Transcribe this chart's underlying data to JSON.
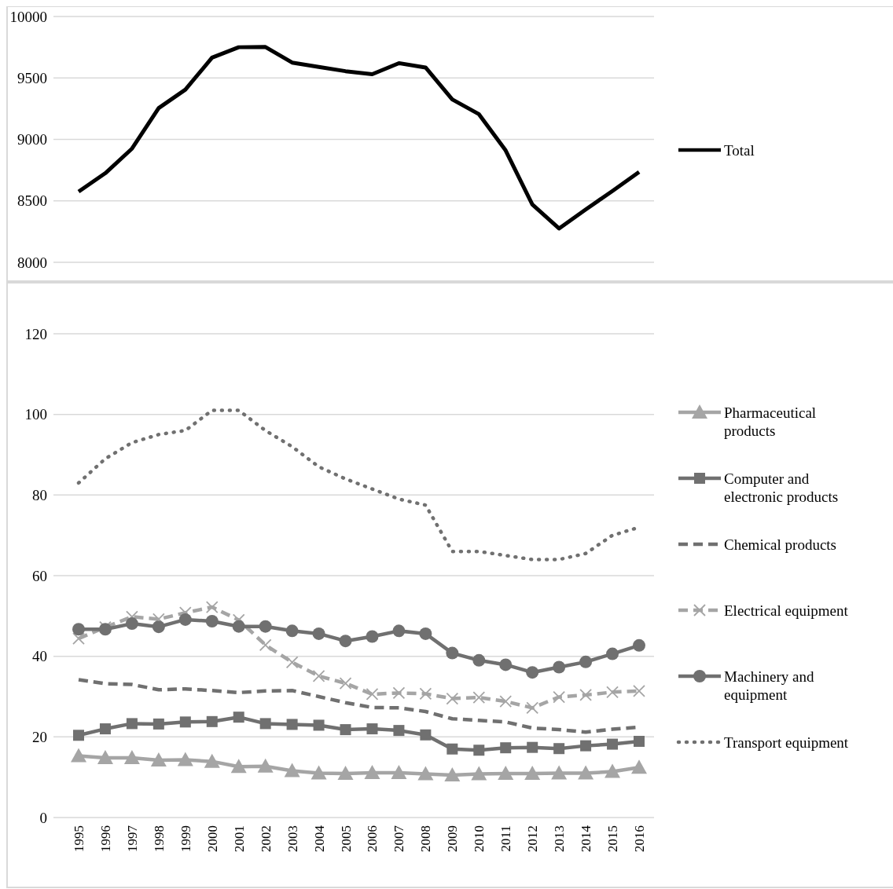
{
  "chart_data": [
    {
      "type": "line",
      "categories": [
        null,
        null,
        null,
        null,
        null,
        null,
        null,
        null,
        null,
        null,
        null,
        null,
        null,
        null,
        null,
        null,
        null,
        null,
        null,
        null,
        null,
        null
      ],
      "ylim": [
        8000,
        10000
      ],
      "yticks": [
        8000,
        8500,
        9000,
        9500,
        10000
      ],
      "grid": "y",
      "legend": "right",
      "tick_labels": "y",
      "marker": "none",
      "line_style": "solid",
      "series": [
        {
          "name": "Total",
          "color": "#000000",
          "values": [
            8575,
            8725,
            8925,
            9255,
            9405,
            9665,
            9750,
            9752,
            9625,
            9590,
            9555,
            9530,
            9620,
            9585,
            9325,
            9205,
            8910,
            8470,
            8275,
            8430,
            8580,
            8735
          ]
        }
      ]
    },
    {
      "type": "line",
      "categories": [
        "1995",
        "1996",
        "1997",
        "1998",
        "1999",
        "2000",
        "2001",
        "2002",
        "2003",
        "2004",
        "2005",
        "2006",
        "2007",
        "2008",
        "2009",
        "2010",
        "2011",
        "2012",
        "2013",
        "2014",
        "2015",
        "2016"
      ],
      "ylim": [
        0,
        120
      ],
      "yticks": [
        0,
        20,
        40,
        60,
        80,
        100,
        120
      ],
      "grid": "y",
      "legend": "right",
      "series": [
        {
          "name": "Pharmaceutical products",
          "color": "#a5a5a5",
          "marker": "triangle",
          "line_style": "solid",
          "values": [
            15.3,
            14.8,
            14.8,
            14.2,
            14.3,
            13.9,
            12.6,
            12.7,
            11.6,
            11,
            10.9,
            11.1,
            11.1,
            10.8,
            10.5,
            10.8,
            10.9,
            10.9,
            11,
            11,
            11.4,
            12.4
          ]
        },
        {
          "name": "Computer and electronic products",
          "color": "#707070",
          "marker": "square",
          "line_style": "solid",
          "values": [
            20.4,
            22,
            23.3,
            23.2,
            23.7,
            23.8,
            24.9,
            23.3,
            23.1,
            22.9,
            21.8,
            22,
            21.6,
            20.5,
            17,
            16.7,
            17.3,
            17.4,
            17.1,
            17.8,
            18.2,
            18.9
          ]
        },
        {
          "name": "Chemical products",
          "color": "#707070",
          "marker": "none",
          "line_style": "dashed",
          "values": [
            34.2,
            33.2,
            33,
            31.7,
            31.9,
            31.5,
            31,
            31.4,
            31.5,
            30,
            28.5,
            27.3,
            27.2,
            26.3,
            24.5,
            24.1,
            23.7,
            22.2,
            21.8,
            21.2,
            21.9,
            22.4
          ]
        },
        {
          "name": "Electrical equipment",
          "color": "#a5a5a5",
          "marker": "cross",
          "line_style": "dashed",
          "values": [
            44.4,
            47.2,
            49.8,
            49.2,
            50.8,
            52.2,
            49,
            42.8,
            38.5,
            35.1,
            33.3,
            30.6,
            30.9,
            30.7,
            29.5,
            29.8,
            28.8,
            27.2,
            29.9,
            30.4,
            31.1,
            31.4
          ]
        },
        {
          "name": "Machinery and equipment",
          "color": "#707070",
          "marker": "circle",
          "line_style": "solid",
          "values": [
            46.7,
            46.7,
            48.1,
            47.3,
            49.1,
            48.7,
            47.4,
            47.4,
            46.3,
            45.6,
            43.8,
            44.9,
            46.3,
            45.6,
            40.8,
            39,
            37.9,
            36,
            37.3,
            38.6,
            40.6,
            42.7
          ]
        },
        {
          "name": "Transport equipment",
          "color": "#707070",
          "marker": "none",
          "line_style": "dotted",
          "values": [
            83,
            89,
            93,
            95,
            96,
            101,
            101,
            96,
            92,
            87,
            84,
            81.5,
            79,
            77.5,
            66,
            66,
            65,
            64,
            64,
            65.5,
            70,
            72
          ]
        }
      ]
    }
  ]
}
